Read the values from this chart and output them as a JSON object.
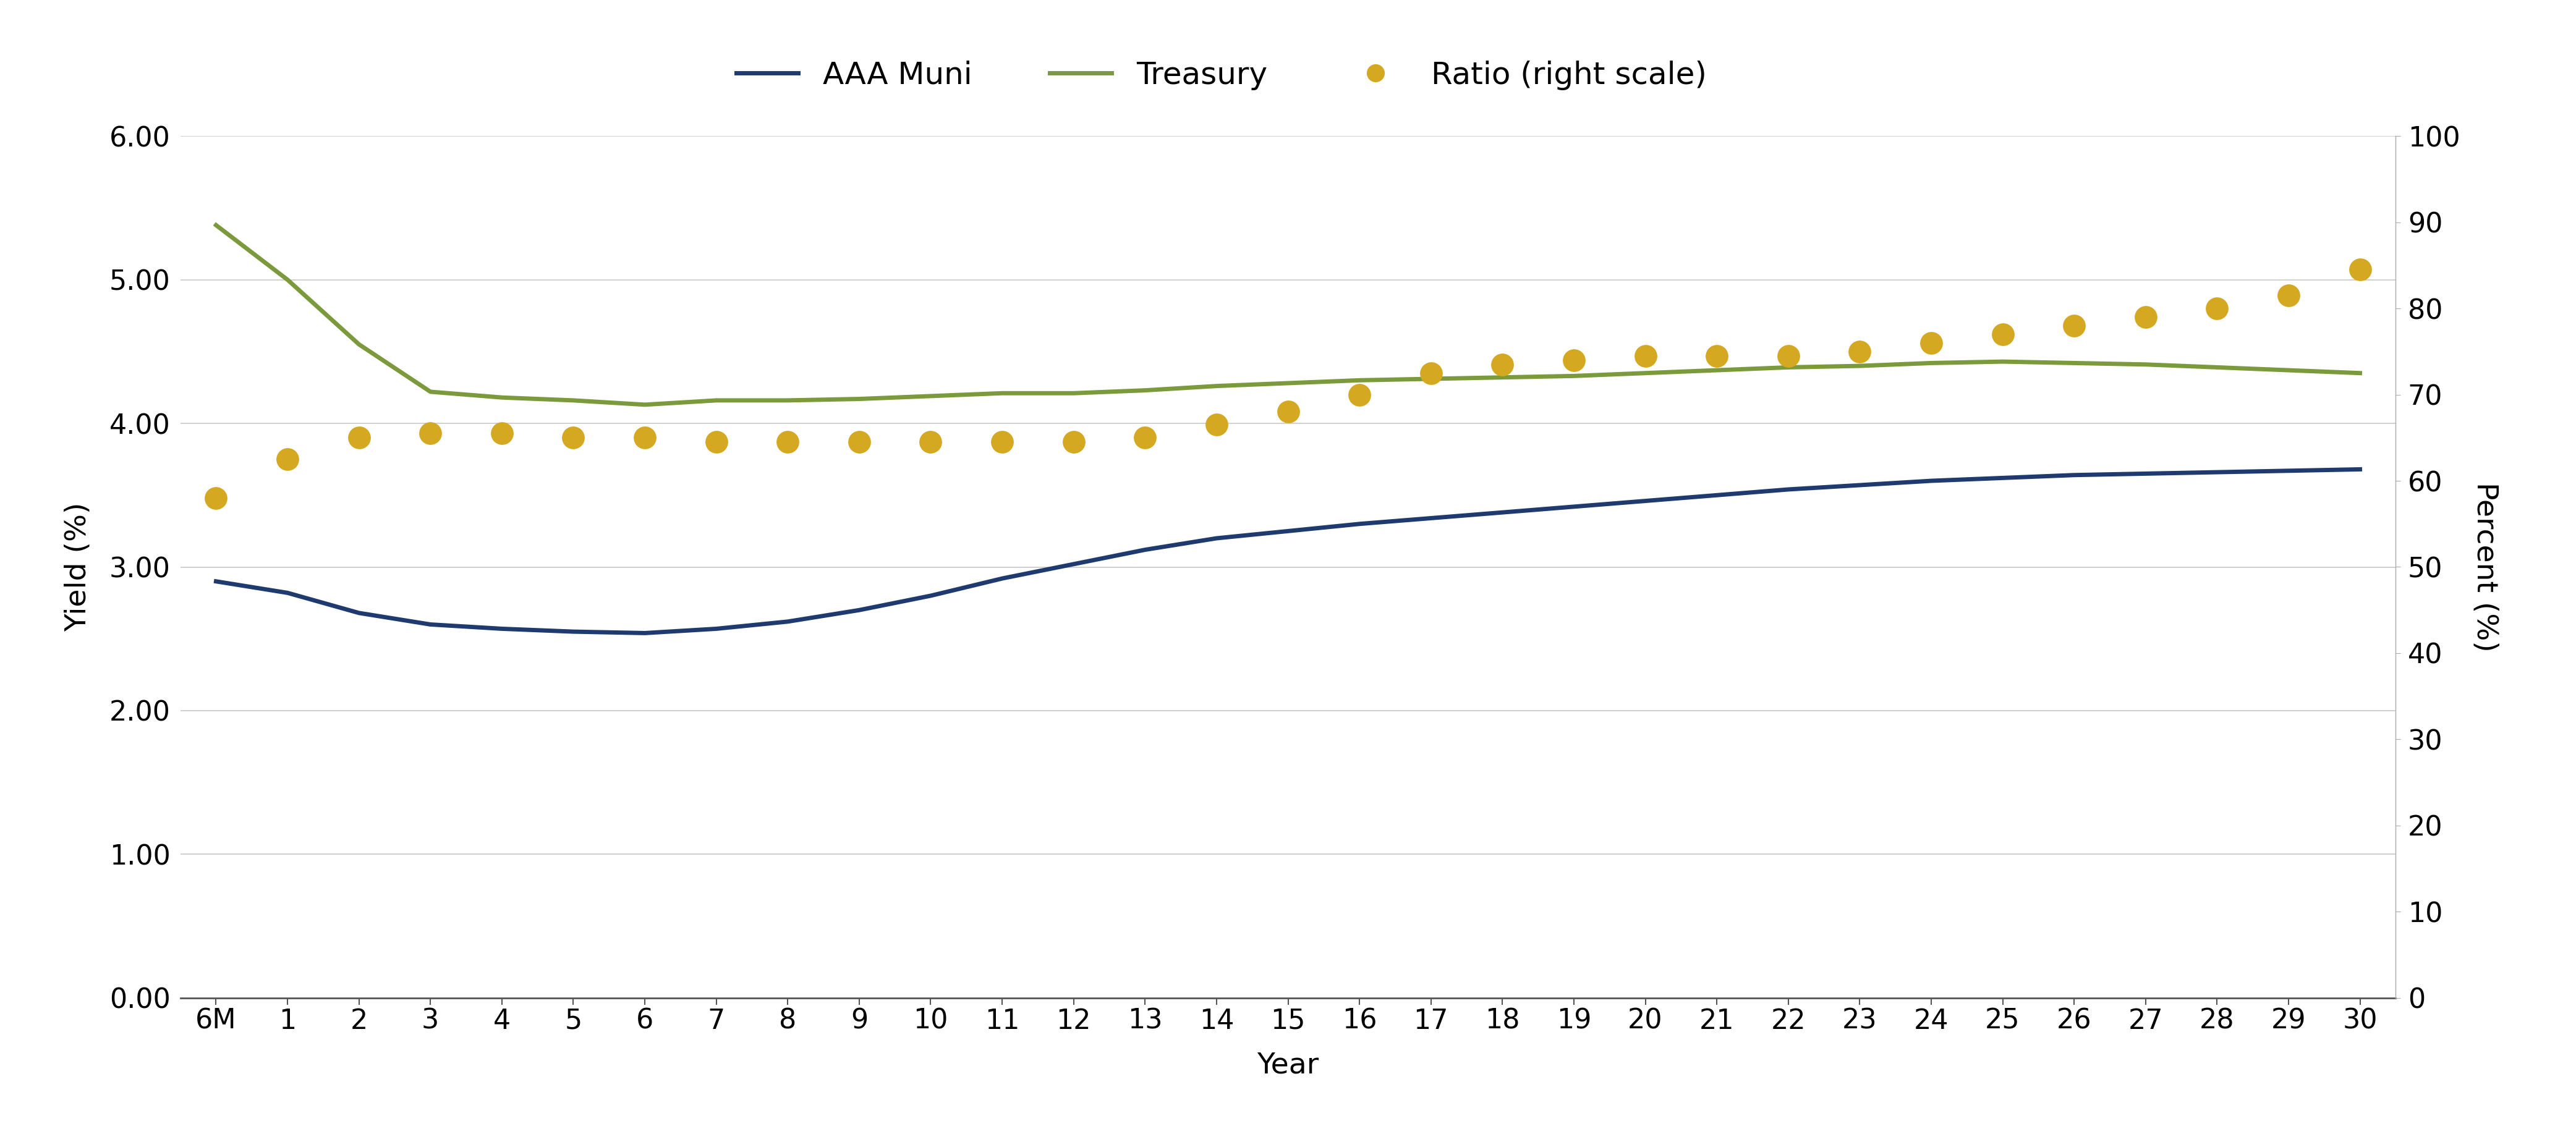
{
  "x_labels": [
    "6M",
    "1",
    "2",
    "3",
    "4",
    "5",
    "6",
    "7",
    "8",
    "9",
    "10",
    "11",
    "12",
    "13",
    "14",
    "15",
    "16",
    "17",
    "18",
    "19",
    "20",
    "21",
    "22",
    "23",
    "24",
    "25",
    "26",
    "27",
    "28",
    "29",
    "30"
  ],
  "x_values": [
    0,
    1,
    2,
    3,
    4,
    5,
    6,
    7,
    8,
    9,
    10,
    11,
    12,
    13,
    14,
    15,
    16,
    17,
    18,
    19,
    20,
    21,
    22,
    23,
    24,
    25,
    26,
    27,
    28,
    29,
    30
  ],
  "aaa_muni": [
    2.9,
    2.82,
    2.68,
    2.6,
    2.57,
    2.55,
    2.54,
    2.57,
    2.62,
    2.7,
    2.8,
    2.92,
    3.02,
    3.12,
    3.2,
    3.25,
    3.3,
    3.34,
    3.38,
    3.42,
    3.46,
    3.5,
    3.54,
    3.57,
    3.6,
    3.62,
    3.64,
    3.65,
    3.66,
    3.67,
    3.68
  ],
  "treasury": [
    5.38,
    5.0,
    4.55,
    4.22,
    4.18,
    4.16,
    4.13,
    4.16,
    4.16,
    4.17,
    4.19,
    4.21,
    4.21,
    4.23,
    4.26,
    4.28,
    4.3,
    4.31,
    4.32,
    4.33,
    4.35,
    4.37,
    4.39,
    4.4,
    4.42,
    4.43,
    4.42,
    4.41,
    4.39,
    4.37,
    4.35
  ],
  "ratio": [
    58.0,
    62.5,
    65.0,
    65.5,
    65.5,
    65.0,
    65.0,
    64.5,
    64.5,
    64.5,
    64.5,
    64.5,
    64.5,
    65.0,
    66.5,
    68.0,
    70.0,
    72.5,
    73.5,
    74.0,
    74.5,
    74.5,
    74.5,
    75.0,
    76.0,
    77.0,
    78.0,
    79.0,
    80.0,
    81.5,
    84.5
  ],
  "aaa_muni_color": "#1f3a6e",
  "treasury_color": "#7a9a3c",
  "ratio_color": "#d4a820",
  "ylabel_left": "Yield (%)",
  "ylabel_right": "Percent (%)",
  "xlabel": "Year",
  "ylim_left": [
    0.0,
    6.0
  ],
  "ylim_right": [
    0,
    100
  ],
  "yticks_left": [
    0.0,
    1.0,
    2.0,
    3.0,
    4.0,
    5.0,
    6.0
  ],
  "ytick_labels_left": [
    "0.00",
    "1.00",
    "2.00",
    "3.00",
    "4.00",
    "5.00",
    "6.00"
  ],
  "yticks_right": [
    0,
    10,
    20,
    30,
    40,
    50,
    60,
    70,
    80,
    90,
    100
  ],
  "background_color": "#ffffff",
  "grid_color": "#c8c8c8",
  "legend_labels": [
    "AAA Muni",
    "Treasury",
    "Ratio (right scale)"
  ],
  "axis_fontsize": 34,
  "tick_fontsize": 32,
  "legend_fontsize": 36
}
